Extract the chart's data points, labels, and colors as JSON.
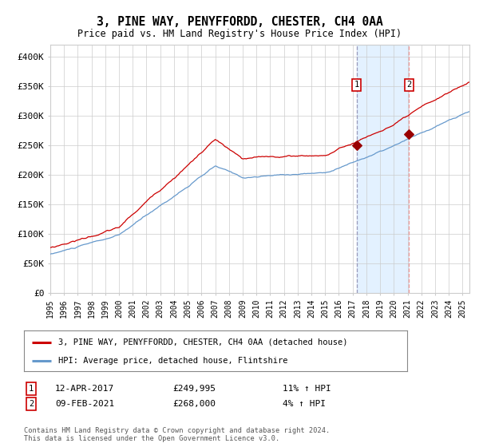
{
  "title": "3, PINE WAY, PENYFFORDD, CHESTER, CH4 0AA",
  "subtitle": "Price paid vs. HM Land Registry's House Price Index (HPI)",
  "legend_line1": "3, PINE WAY, PENYFFORDD, CHESTER, CH4 0AA (detached house)",
  "legend_line2": "HPI: Average price, detached house, Flintshire",
  "annotation1_date": "12-APR-2017",
  "annotation1_price": "£249,995",
  "annotation1_hpi": "11% ↑ HPI",
  "annotation1_year": 2017.28,
  "annotation1_value": 249995,
  "annotation2_date": "09-FEB-2021",
  "annotation2_price": "£268,000",
  "annotation2_hpi": "4% ↑ HPI",
  "annotation2_year": 2021.11,
  "annotation2_value": 268000,
  "red_line_color": "#cc0000",
  "blue_line_color": "#6699cc",
  "marker_color": "#990000",
  "vline1_color": "#9999bb",
  "vline2_color": "#ee9999",
  "shade_color": "#ddeeff",
  "bg_color": "#ffffff",
  "grid_color": "#cccccc",
  "footer": "Contains HM Land Registry data © Crown copyright and database right 2024.\nThis data is licensed under the Open Government Licence v3.0.",
  "ylim": [
    0,
    420000
  ],
  "yticks": [
    0,
    50000,
    100000,
    150000,
    200000,
    250000,
    300000,
    350000,
    400000
  ],
  "xstart": 1995.0,
  "xend": 2025.5
}
